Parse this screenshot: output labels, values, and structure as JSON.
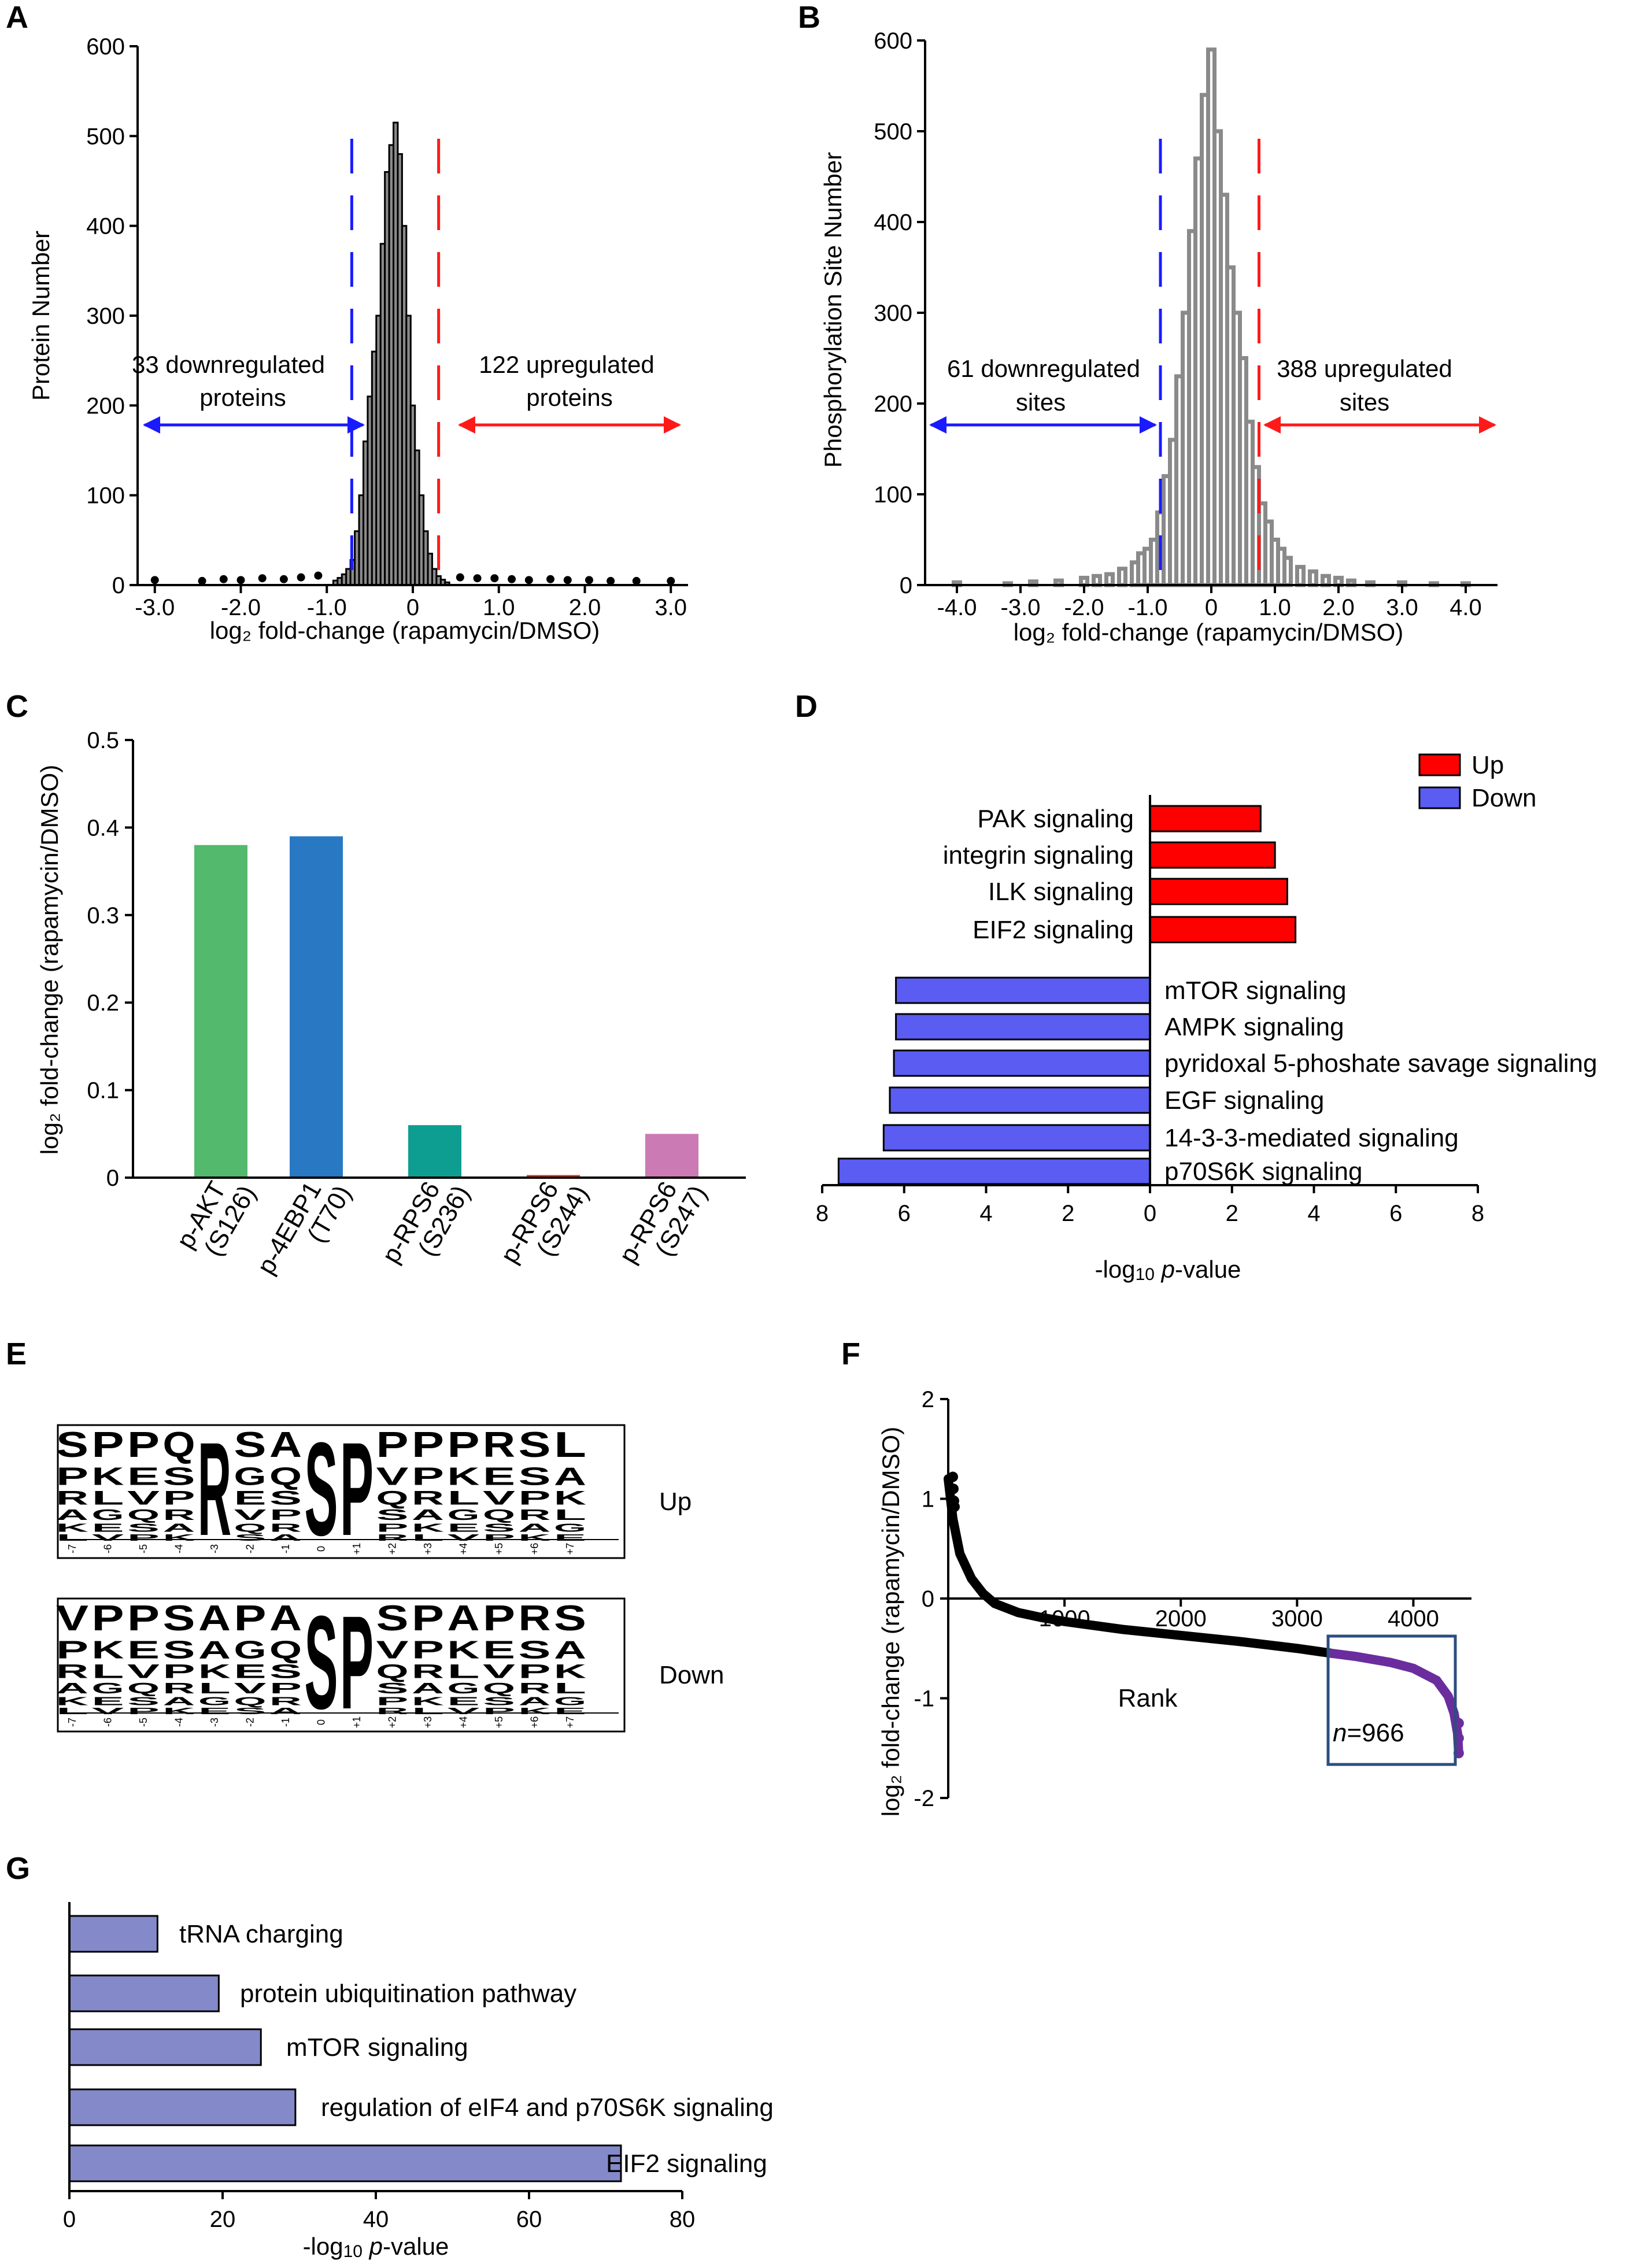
{
  "colors": {
    "up_red": "#ff1a1a",
    "down_blue": "#1a1aff",
    "green": "#52b96d",
    "darkblue": "#2978c4",
    "teal": "#0e9e91",
    "red_bar": "#e3342b",
    "pink": "#cc7ab3",
    "bar_up": "#ff0000",
    "bar_down": "#5a5cf2",
    "purple": "#6b2d9e",
    "box": "#2d4d7f",
    "bar_g": "#8489c9"
  },
  "chart_data": [
    {
      "panel": "A",
      "type": "bar",
      "subtype": "histogram",
      "xlabel": "log₂ fold-change (rapamycin/DMSO)",
      "ylabel": "Protein Number",
      "xlim": [
        -3.2,
        3.2
      ],
      "ylim": [
        0,
        600
      ],
      "xticks": [
        -3,
        -2,
        -1,
        0,
        1,
        2,
        3
      ],
      "xtick_labels": [
        "-3.0",
        "-2.0",
        "-1.0",
        "0",
        "1.0",
        "2.0",
        "3.0"
      ],
      "yticks": [
        0,
        100,
        200,
        300,
        400,
        500,
        600
      ],
      "ytick_labels": [
        "0",
        "100",
        "200",
        "300",
        "400",
        "500",
        "600"
      ],
      "thresholds": [
        -0.71,
        0.3
      ],
      "annotations": [
        {
          "lines": [
            "33 downregulated",
            "proteins"
          ],
          "side": "left"
        },
        {
          "lines": [
            "122 upregulated",
            "proteins"
          ],
          "side": "right"
        }
      ],
      "x": [
        -0.9,
        -0.85,
        -0.8,
        -0.75,
        -0.7,
        -0.65,
        -0.6,
        -0.55,
        -0.5,
        -0.45,
        -0.4,
        -0.35,
        -0.3,
        -0.25,
        -0.2,
        -0.15,
        -0.1,
        -0.05,
        0,
        0.05,
        0.1,
        0.15,
        0.2,
        0.25,
        0.3,
        0.35,
        0.4
      ],
      "values": [
        5,
        8,
        12,
        18,
        28,
        60,
        100,
        160,
        210,
        260,
        300,
        380,
        460,
        490,
        515,
        480,
        400,
        300,
        200,
        150,
        100,
        60,
        35,
        18,
        10,
        6,
        3
      ],
      "outlier_x": [
        -3.0,
        -2.45,
        -2.2,
        -2.0,
        -1.75,
        -1.5,
        -1.3,
        -1.1,
        0.55,
        0.75,
        0.95,
        1.15,
        1.35,
        1.6,
        1.8,
        2.05,
        2.3,
        2.6,
        3.0
      ],
      "outlier_y": [
        3,
        2,
        4,
        3,
        5,
        4,
        6,
        8,
        6,
        5,
        5,
        4,
        3,
        4,
        3,
        3,
        2,
        2,
        2
      ]
    },
    {
      "panel": "B",
      "type": "bar",
      "subtype": "histogram",
      "xlabel": "log₂ fold-change (rapamycin/DMSO)",
      "ylabel": "Phosphorylation Site Number",
      "xlim": [
        -4.5,
        4.5
      ],
      "ylim": [
        0,
        600
      ],
      "xticks": [
        -4,
        -3,
        -2,
        -1,
        0,
        1,
        2,
        3,
        4
      ],
      "xtick_labels": [
        "-4.0",
        "-3.0",
        "-2.0",
        "-1.0",
        "0",
        "1.0",
        "2.0",
        "3.0",
        "4.0"
      ],
      "yticks": [
        0,
        100,
        200,
        300,
        400,
        500,
        600
      ],
      "ytick_labels": [
        "0",
        "100",
        "200",
        "300",
        "400",
        "500",
        "600"
      ],
      "thresholds": [
        -0.8,
        0.75
      ],
      "annotations": [
        {
          "lines": [
            "61 downregulated",
            "sites"
          ],
          "side": "left"
        },
        {
          "lines": [
            "388 upregulated",
            "sites"
          ],
          "side": "right"
        }
      ],
      "x": [
        -4.0,
        -3.2,
        -2.8,
        -2.4,
        -2.0,
        -1.8,
        -1.6,
        -1.4,
        -1.2,
        -1.1,
        -1.0,
        -0.9,
        -0.8,
        -0.7,
        -0.6,
        -0.5,
        -0.4,
        -0.3,
        -0.2,
        -0.1,
        0,
        0.1,
        0.2,
        0.3,
        0.4,
        0.5,
        0.6,
        0.7,
        0.8,
        0.9,
        1.0,
        1.1,
        1.2,
        1.4,
        1.6,
        1.8,
        2.0,
        2.2,
        2.5,
        3.0,
        3.5,
        4.0
      ],
      "values": [
        3,
        2,
        4,
        5,
        8,
        10,
        12,
        18,
        25,
        35,
        40,
        50,
        80,
        120,
        160,
        230,
        300,
        390,
        470,
        540,
        590,
        500,
        430,
        350,
        300,
        250,
        180,
        130,
        90,
        70,
        50,
        40,
        30,
        20,
        15,
        10,
        8,
        5,
        3,
        3,
        2,
        2
      ]
    },
    {
      "panel": "C",
      "type": "bar",
      "ylabel": "log₂ fold-change (rapamycin/DMSO)",
      "ylim": [
        0,
        0.5
      ],
      "yticks": [
        0,
        0.1,
        0.2,
        0.3,
        0.4,
        0.5
      ],
      "ytick_labels": [
        "0",
        "0.1",
        "0.2",
        "0.3",
        "0.4",
        "0.5"
      ],
      "categories": [
        [
          "p-AKT",
          "(S126)"
        ],
        [
          "p-4EBP1",
          "(T70)"
        ],
        [
          "p-RPS6",
          "(S236)"
        ],
        [
          "p-RPS6",
          "(S244)"
        ],
        [
          "p-RPS6",
          "(S247)"
        ]
      ],
      "values": [
        0.38,
        0.39,
        0.06,
        0.003,
        0.05
      ]
    },
    {
      "panel": "D",
      "type": "bar",
      "orientation": "horizontal",
      "xlabel": "-log₁₀ p-value",
      "xlim": [
        -8,
        8
      ],
      "xticks": [
        -8,
        -6,
        -4,
        -2,
        0,
        2,
        4,
        6,
        8
      ],
      "xtick_labels": [
        "8",
        "6",
        "4",
        "2",
        "0",
        "2",
        "4",
        "6",
        "8"
      ],
      "legend": [
        "Up",
        "Down"
      ],
      "up_categories": [
        "PAK signaling",
        "integrin signaling",
        "ILK signaling",
        "EIF2 signaling"
      ],
      "up_values": [
        2.7,
        3.05,
        3.35,
        3.55
      ],
      "down_categories": [
        "mTOR signaling",
        "AMPK signaling",
        "pyridoxal 5-phoshate savage signaling",
        "EGF signaling",
        "14-3-3-mediated signaling",
        "p70S6K signaling"
      ],
      "down_values": [
        6.2,
        6.2,
        6.25,
        6.35,
        6.5,
        7.6
      ]
    },
    {
      "panel": "F",
      "type": "scatter",
      "ylabel": "log₂ fold-change (rapamycin/DMSO)",
      "xlabel": "Rank",
      "xlim": [
        0,
        4500
      ],
      "ylim": [
        -2,
        2
      ],
      "xticks": [
        1000,
        2000,
        3000,
        4000
      ],
      "xtick_labels": [
        "1000",
        "2000",
        "3000",
        "4000"
      ],
      "yticks": [
        -2,
        -1,
        0,
        1,
        2
      ],
      "ytick_labels": [
        "-2",
        "-1",
        "0",
        "1",
        "2"
      ],
      "box_label_n": "n",
      "box_label_value": "=966",
      "curve_x": [
        0,
        40,
        100,
        200,
        300,
        400,
        600,
        800,
        1000,
        1500,
        2000,
        2500,
        3000,
        3300,
        3500,
        3800,
        4000,
        4200,
        4300,
        4350,
        4380,
        4390
      ],
      "curve_y": [
        1.2,
        0.8,
        0.45,
        0.2,
        0.05,
        -0.05,
        -0.14,
        -0.19,
        -0.23,
        -0.31,
        -0.37,
        -0.43,
        -0.5,
        -0.55,
        -0.58,
        -0.64,
        -0.7,
        -0.82,
        -0.98,
        -1.15,
        -1.35,
        -1.55
      ],
      "highlight_from_x": 3300
    },
    {
      "panel": "G",
      "type": "bar",
      "orientation": "horizontal",
      "xlabel": "-log₁₀ p-value",
      "xlim": [
        0,
        80
      ],
      "xticks": [
        0,
        20,
        40,
        60,
        80
      ],
      "xtick_labels": [
        "0",
        "20",
        "40",
        "60",
        "80"
      ],
      "categories": [
        "tRNA charging",
        "protein  ubiquitination pathway",
        "mTOR signaling",
        "regulation of eIF4 and p70S6K signaling",
        "EIF2 signaling"
      ],
      "values": [
        11.5,
        19.5,
        25,
        29.5,
        72
      ]
    }
  ],
  "logos": {
    "positions": [
      "-7",
      "-6",
      "-5",
      "-4",
      "-3",
      "-2",
      "-1",
      "0",
      "+1",
      "+2",
      "+3",
      "+4",
      "+5",
      "+6",
      "+7"
    ],
    "up_label": "Up",
    "down_label": "Down",
    "up_top": [
      "S",
      "P",
      "P",
      "Q",
      "R",
      "S",
      "A",
      "S",
      "P",
      "P",
      "P",
      "P",
      "R",
      "S",
      "L"
    ],
    "down_top": [
      "V",
      "P",
      "P",
      "S",
      "A",
      "P",
      "A",
      "S",
      "P",
      "S",
      "P",
      "A",
      "P",
      "R",
      "S"
    ]
  },
  "panel_letters": [
    "A",
    "B",
    "C",
    "D",
    "E",
    "F",
    "G"
  ]
}
